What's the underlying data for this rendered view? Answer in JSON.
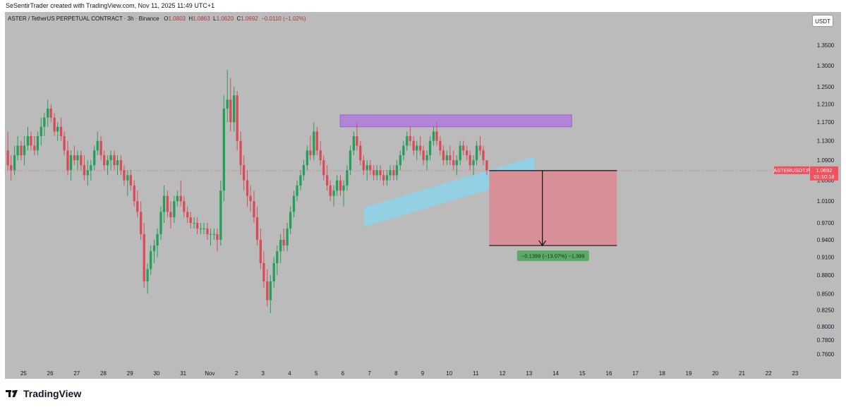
{
  "caption": "SeSentirTrader created with TradingView.com, Nov 11, 2025 11:49 UTC+1",
  "symbol_line": {
    "title": "ASTER / TetherUS PERPETUAL CONTRACT · 3h · Binance",
    "open_label": "O",
    "open": "1.0803",
    "high_label": "H",
    "high": "1.0863",
    "low_label": "L",
    "low": "1.0620",
    "close_label": "C",
    "close": "1.0692",
    "change": "−0.0110 (−1.02%)"
  },
  "currency": "USDT",
  "brand": "TradingView",
  "price_tag": {
    "symbol": "ASTERUSDT.P",
    "price": "1.0692",
    "countdown": "01:10:18",
    "value": 1.0692
  },
  "measure_label": "−0.1399 (−13.07%) −1,399",
  "colors": {
    "background": "#bbbbbb",
    "up": "#22a05a",
    "down": "#d94b56",
    "resistance_zone": "#b185d6",
    "trend_channel": "#8fd3e8",
    "target_zone": "#d98f97",
    "measure_label_bg": "#5bab66",
    "price_tag": "#f0525e"
  },
  "chart_data": {
    "type": "candlestick",
    "interval": "3h",
    "y_scale": "log",
    "ylim": [
      0.745,
      1.39
    ],
    "y_ticks": [
      "1.3500",
      "1.3000",
      "1.2500",
      "1.2100",
      "1.1700",
      "1.1300",
      "1.0900",
      "1.0500",
      "1.0100",
      "0.9700",
      "0.9400",
      "0.9100",
      "0.8800",
      "0.8500",
      "0.8250",
      "0.8000",
      "0.7800",
      "0.7600"
    ],
    "x_tick_labels": [
      "25",
      "26",
      "27",
      "28",
      "29",
      "30",
      "31",
      "Nov",
      "2",
      "3",
      "4",
      "5",
      "6",
      "7",
      "8",
      "9",
      "10",
      "11",
      "12",
      "13",
      "14",
      "15",
      "16",
      "17",
      "18",
      "19",
      "20",
      "21",
      "22",
      "23"
    ],
    "x_tick_days": [
      -7,
      -6,
      -5,
      -4,
      -3,
      -2,
      -1,
      0,
      1,
      2,
      3,
      4,
      5,
      6,
      7,
      8,
      9,
      10,
      11,
      12,
      13,
      14,
      15,
      16,
      17,
      18,
      19,
      20,
      21,
      22
    ],
    "x_note": "day 0 = Nov 1, 2025; fractional day = 3h candle slot",
    "xlim_days": [
      -7.7,
      22.4
    ],
    "candles": [
      [
        -7.59,
        1.11,
        1.15,
        1.07,
        1.08
      ],
      [
        -7.47,
        1.08,
        1.1,
        1.05,
        1.07
      ],
      [
        -7.34,
        1.07,
        1.12,
        1.06,
        1.1
      ],
      [
        -7.22,
        1.1,
        1.14,
        1.09,
        1.12
      ],
      [
        -7.09,
        1.12,
        1.13,
        1.09,
        1.1
      ],
      [
        -6.97,
        1.1,
        1.14,
        1.08,
        1.12
      ],
      [
        -6.84,
        1.12,
        1.16,
        1.11,
        1.14
      ],
      [
        -6.72,
        1.14,
        1.15,
        1.11,
        1.12
      ],
      [
        -6.59,
        1.12,
        1.14,
        1.1,
        1.11
      ],
      [
        -6.47,
        1.11,
        1.15,
        1.1,
        1.14
      ],
      [
        -6.34,
        1.14,
        1.18,
        1.12,
        1.16
      ],
      [
        -6.22,
        1.16,
        1.19,
        1.14,
        1.18
      ],
      [
        -6.09,
        1.18,
        1.22,
        1.16,
        1.2
      ],
      [
        -5.97,
        1.2,
        1.21,
        1.17,
        1.18
      ],
      [
        -5.84,
        1.18,
        1.19,
        1.14,
        1.15
      ],
      [
        -5.72,
        1.15,
        1.17,
        1.13,
        1.16
      ],
      [
        -5.59,
        1.16,
        1.18,
        1.13,
        1.14
      ],
      [
        -5.47,
        1.14,
        1.15,
        1.1,
        1.11
      ],
      [
        -5.34,
        1.11,
        1.13,
        1.06,
        1.07
      ],
      [
        -5.22,
        1.07,
        1.11,
        1.05,
        1.1
      ],
      [
        -5.09,
        1.1,
        1.12,
        1.08,
        1.09
      ],
      [
        -4.97,
        1.09,
        1.11,
        1.07,
        1.1
      ],
      [
        -4.84,
        1.1,
        1.11,
        1.07,
        1.08
      ],
      [
        -4.72,
        1.08,
        1.1,
        1.05,
        1.06
      ],
      [
        -4.59,
        1.06,
        1.09,
        1.04,
        1.07
      ],
      [
        -4.47,
        1.07,
        1.09,
        1.05,
        1.08
      ],
      [
        -4.34,
        1.08,
        1.12,
        1.07,
        1.11
      ],
      [
        -4.22,
        1.11,
        1.15,
        1.1,
        1.13
      ],
      [
        -4.09,
        1.13,
        1.14,
        1.09,
        1.1
      ],
      [
        -3.97,
        1.1,
        1.11,
        1.07,
        1.08
      ],
      [
        -3.84,
        1.08,
        1.1,
        1.06,
        1.09
      ],
      [
        -3.72,
        1.09,
        1.11,
        1.07,
        1.1
      ],
      [
        -3.59,
        1.1,
        1.11,
        1.07,
        1.08
      ],
      [
        -3.47,
        1.08,
        1.1,
        1.06,
        1.09
      ],
      [
        -3.34,
        1.09,
        1.1,
        1.06,
        1.07
      ],
      [
        -3.22,
        1.07,
        1.08,
        1.04,
        1.05
      ],
      [
        -3.09,
        1.05,
        1.07,
        1.02,
        1.06
      ],
      [
        -2.97,
        1.06,
        1.07,
        1.03,
        1.04
      ],
      [
        -2.84,
        1.04,
        1.05,
        1.0,
        1.01
      ],
      [
        -2.72,
        1.01,
        1.03,
        0.98,
        0.99
      ],
      [
        -2.59,
        0.99,
        1.01,
        0.94,
        0.95
      ],
      [
        -2.47,
        0.95,
        0.97,
        0.86,
        0.87
      ],
      [
        -2.34,
        0.87,
        0.9,
        0.85,
        0.89
      ],
      [
        -2.22,
        0.89,
        0.93,
        0.88,
        0.92
      ],
      [
        -2.09,
        0.92,
        0.94,
        0.9,
        0.93
      ],
      [
        -1.97,
        0.93,
        0.96,
        0.91,
        0.95
      ],
      [
        -1.84,
        0.95,
        1.0,
        0.94,
        0.99
      ],
      [
        -1.72,
        0.99,
        1.04,
        0.97,
        1.02
      ],
      [
        -1.59,
        1.02,
        1.03,
        0.98,
        0.99
      ],
      [
        -1.47,
        0.99,
        1.01,
        0.96,
        0.98
      ],
      [
        -1.34,
        0.98,
        1.02,
        0.97,
        1.01
      ],
      [
        -1.22,
        1.01,
        1.03,
        1.0,
        1.02
      ],
      [
        -1.09,
        1.02,
        1.05,
        1.0,
        1.01
      ],
      [
        -0.97,
        1.01,
        1.02,
        0.98,
        0.99
      ],
      [
        -0.84,
        0.99,
        1.0,
        0.97,
        0.98
      ],
      [
        -0.72,
        0.98,
        0.99,
        0.96,
        0.97
      ],
      [
        -0.59,
        0.97,
        0.98,
        0.96,
        0.97
      ],
      [
        -0.47,
        0.97,
        0.98,
        0.95,
        0.96
      ],
      [
        -0.34,
        0.96,
        0.97,
        0.95,
        0.96
      ],
      [
        -0.22,
        0.96,
        0.97,
        0.95,
        0.96
      ],
      [
        -0.09,
        0.96,
        0.97,
        0.94,
        0.95
      ],
      [
        0.03,
        0.95,
        0.96,
        0.93,
        0.95
      ],
      [
        0.16,
        0.95,
        0.96,
        0.94,
        0.95
      ],
      [
        0.28,
        0.95,
        0.96,
        0.92,
        0.94
      ],
      [
        0.41,
        0.94,
        1.05,
        0.93,
        1.03
      ],
      [
        0.53,
        1.03,
        1.23,
        1.01,
        1.2
      ],
      [
        0.66,
        1.2,
        1.29,
        1.17,
        1.22
      ],
      [
        0.78,
        1.22,
        1.27,
        1.15,
        1.17
      ],
      [
        0.91,
        1.17,
        1.25,
        1.15,
        1.23
      ],
      [
        1.03,
        1.23,
        1.24,
        1.11,
        1.13
      ],
      [
        1.16,
        1.13,
        1.15,
        1.06,
        1.08
      ],
      [
        1.28,
        1.08,
        1.1,
        1.03,
        1.05
      ],
      [
        1.41,
        1.05,
        1.07,
        1.0,
        1.02
      ],
      [
        1.53,
        1.02,
        1.04,
        0.99,
        1.01
      ],
      [
        1.66,
        1.01,
        1.03,
        0.97,
        0.98
      ],
      [
        1.78,
        0.98,
        1.0,
        0.93,
        0.94
      ],
      [
        1.91,
        0.94,
        0.96,
        0.89,
        0.9
      ],
      [
        2.03,
        0.9,
        0.92,
        0.86,
        0.87
      ],
      [
        2.16,
        0.87,
        0.89,
        0.83,
        0.84
      ],
      [
        2.28,
        0.84,
        0.88,
        0.82,
        0.87
      ],
      [
        2.41,
        0.87,
        0.91,
        0.86,
        0.9
      ],
      [
        2.53,
        0.9,
        0.93,
        0.88,
        0.92
      ],
      [
        2.66,
        0.92,
        0.95,
        0.9,
        0.94
      ],
      [
        2.78,
        0.94,
        0.96,
        0.92,
        0.93
      ],
      [
        2.91,
        0.93,
        0.97,
        0.92,
        0.96
      ],
      [
        3.03,
        0.96,
        1.0,
        0.95,
        0.99
      ],
      [
        3.16,
        0.99,
        1.03,
        0.98,
        1.02
      ],
      [
        3.28,
        1.02,
        1.05,
        1.01,
        1.04
      ],
      [
        3.41,
        1.04,
        1.07,
        1.03,
        1.06
      ],
      [
        3.53,
        1.06,
        1.09,
        1.05,
        1.08
      ],
      [
        3.66,
        1.08,
        1.12,
        1.07,
        1.11
      ],
      [
        3.78,
        1.11,
        1.14,
        1.09,
        1.1
      ],
      [
        3.91,
        1.1,
        1.17,
        1.09,
        1.15
      ],
      [
        4.03,
        1.15,
        1.16,
        1.1,
        1.11
      ],
      [
        4.16,
        1.11,
        1.13,
        1.08,
        1.09
      ],
      [
        4.28,
        1.09,
        1.1,
        1.05,
        1.06
      ],
      [
        4.41,
        1.06,
        1.08,
        1.03,
        1.04
      ],
      [
        4.53,
        1.04,
        1.05,
        1.01,
        1.02
      ],
      [
        4.66,
        1.02,
        1.04,
        1.0,
        1.03
      ],
      [
        4.78,
        1.03,
        1.06,
        1.02,
        1.05
      ],
      [
        4.91,
        1.05,
        1.06,
        1.02,
        1.03
      ],
      [
        5.03,
        1.03,
        1.05,
        1.0,
        1.04
      ],
      [
        5.16,
        1.04,
        1.08,
        1.03,
        1.07
      ],
      [
        5.28,
        1.07,
        1.12,
        1.06,
        1.11
      ],
      [
        5.41,
        1.11,
        1.15,
        1.1,
        1.14
      ],
      [
        5.53,
        1.14,
        1.17,
        1.11,
        1.12
      ],
      [
        5.66,
        1.12,
        1.13,
        1.08,
        1.09
      ],
      [
        5.78,
        1.09,
        1.1,
        1.06,
        1.07
      ],
      [
        5.91,
        1.07,
        1.09,
        1.05,
        1.08
      ],
      [
        6.03,
        1.08,
        1.09,
        1.06,
        1.07
      ],
      [
        6.16,
        1.07,
        1.08,
        1.05,
        1.06
      ],
      [
        6.28,
        1.06,
        1.08,
        1.05,
        1.07
      ],
      [
        6.41,
        1.07,
        1.08,
        1.05,
        1.06
      ],
      [
        6.53,
        1.06,
        1.07,
        1.04,
        1.05
      ],
      [
        6.66,
        1.05,
        1.07,
        1.04,
        1.06
      ],
      [
        6.78,
        1.06,
        1.08,
        1.05,
        1.07
      ],
      [
        6.91,
        1.07,
        1.08,
        1.05,
        1.06
      ],
      [
        7.03,
        1.06,
        1.09,
        1.05,
        1.08
      ],
      [
        7.16,
        1.08,
        1.11,
        1.07,
        1.1
      ],
      [
        7.28,
        1.1,
        1.13,
        1.09,
        1.12
      ],
      [
        7.41,
        1.12,
        1.15,
        1.11,
        1.14
      ],
      [
        7.53,
        1.14,
        1.16,
        1.12,
        1.13
      ],
      [
        7.66,
        1.13,
        1.14,
        1.1,
        1.11
      ],
      [
        7.78,
        1.11,
        1.13,
        1.09,
        1.12
      ],
      [
        7.91,
        1.12,
        1.14,
        1.1,
        1.11
      ],
      [
        8.03,
        1.11,
        1.12,
        1.08,
        1.09
      ],
      [
        8.16,
        1.09,
        1.11,
        1.07,
        1.1
      ],
      [
        8.28,
        1.1,
        1.14,
        1.09,
        1.13
      ],
      [
        8.41,
        1.13,
        1.16,
        1.12,
        1.15
      ],
      [
        8.53,
        1.15,
        1.17,
        1.12,
        1.13
      ],
      [
        8.66,
        1.13,
        1.14,
        1.1,
        1.11
      ],
      [
        8.78,
        1.11,
        1.12,
        1.08,
        1.09
      ],
      [
        8.91,
        1.09,
        1.11,
        1.08,
        1.1
      ],
      [
        9.03,
        1.1,
        1.12,
        1.08,
        1.09
      ],
      [
        9.16,
        1.09,
        1.11,
        1.07,
        1.08
      ],
      [
        9.28,
        1.08,
        1.1,
        1.06,
        1.09
      ],
      [
        9.41,
        1.09,
        1.13,
        1.08,
        1.12
      ],
      [
        9.53,
        1.12,
        1.13,
        1.1,
        1.11
      ],
      [
        9.66,
        1.11,
        1.12,
        1.09,
        1.1
      ],
      [
        9.78,
        1.1,
        1.11,
        1.07,
        1.08
      ],
      [
        9.91,
        1.08,
        1.1,
        1.06,
        1.09
      ],
      [
        10.03,
        1.09,
        1.13,
        1.08,
        1.12
      ],
      [
        10.16,
        1.12,
        1.14,
        1.1,
        1.11
      ],
      [
        10.28,
        1.11,
        1.12,
        1.08,
        1.09
      ],
      [
        10.41,
        1.09,
        1.09,
        1.06,
        1.07
      ]
    ],
    "annotations": [
      {
        "type": "rectangle",
        "label": "resistance-zone",
        "x_days": [
          4.9,
          13.6
        ],
        "y": [
          1.16,
          1.186
        ]
      },
      {
        "type": "parallel-channel",
        "label": "rising-trend-channel",
        "points": [
          [
            5.8,
            0.981
          ],
          [
            12.2,
            1.078
          ]
        ],
        "thickness": 0.018
      },
      {
        "type": "rectangle",
        "label": "target-zone",
        "x_days": [
          10.5,
          15.3
        ],
        "y": [
          0.93,
          1.0692
        ]
      },
      {
        "type": "arrow",
        "from": [
          12.5,
          1.0692
        ],
        "to": [
          12.5,
          0.93
        ]
      },
      {
        "type": "line",
        "label": "last-price-line",
        "y": 1.0692
      }
    ]
  }
}
